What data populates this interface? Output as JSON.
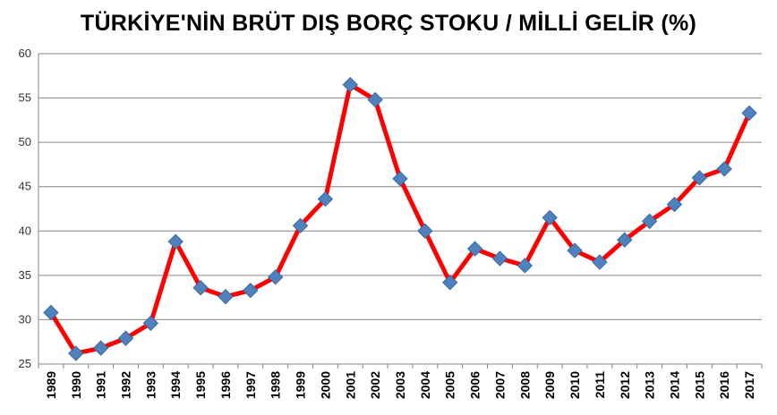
{
  "chart_data": {
    "type": "line",
    "title": "TÜRKİYE'NİN BRÜT DIŞ BORÇ STOKU / MİLLİ GELİR (%)",
    "xlabel": "",
    "ylabel": "",
    "ylim": [
      25,
      60
    ],
    "y_ticks": [
      "25",
      "30",
      "35",
      "40",
      "45",
      "50",
      "55",
      "60"
    ],
    "grid": true,
    "legend": "none",
    "line_color": "#ff0000",
    "marker_color": "#4f81bd",
    "categories": [
      "1989",
      "1990",
      "1991",
      "1992",
      "1993",
      "1994",
      "1995",
      "1996",
      "1997",
      "1998",
      "1999",
      "2000",
      "2001",
      "2002",
      "2003",
      "2004",
      "2005",
      "2006",
      "2007",
      "2008",
      "2009",
      "2010",
      "2011",
      "2012",
      "2013",
      "2014",
      "2015",
      "2016",
      "2017"
    ],
    "values": [
      30.8,
      26.2,
      26.8,
      27.9,
      29.6,
      38.8,
      33.6,
      32.6,
      33.3,
      34.8,
      40.6,
      43.6,
      56.5,
      54.8,
      45.9,
      40.0,
      34.2,
      38.0,
      36.9,
      36.1,
      41.5,
      37.8,
      36.5,
      39.0,
      41.1,
      43.0,
      46.0,
      47.0,
      53.3
    ]
  }
}
